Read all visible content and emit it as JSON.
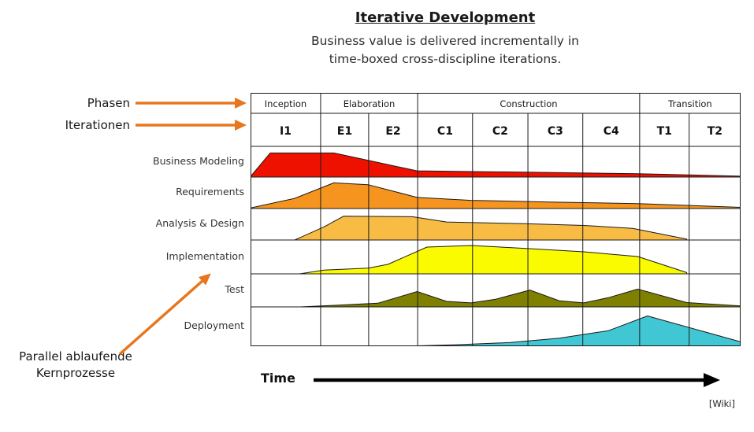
{
  "header": {
    "title": "Iterative Development",
    "subtitle_line1": "Business value is delivered incrementally in",
    "subtitle_line2": "time-boxed cross-discipline iterations."
  },
  "annotations": {
    "phases_label": "Phasen",
    "iterations_label": "Iterationen",
    "parallel_label_line1": "Parallel ablaufende",
    "parallel_label_line2": "Kernprozesse",
    "arrow_color": "#e8761e"
  },
  "footer": {
    "time_label": "Time",
    "time_arrow_color": "#000000",
    "credit": "[Wiki]"
  },
  "chart_data": {
    "type": "area",
    "title": "Iterative Development",
    "xlabel": "Time",
    "grid_color": "#1b1b1b",
    "column_bounds_pct": [
      0,
      14.3,
      24.1,
      34.1,
      45.3,
      56.6,
      67.8,
      79.4,
      89.5,
      100
    ],
    "phases": [
      {
        "label": "Inception",
        "iterations": [
          "I1"
        ]
      },
      {
        "label": "Elaboration",
        "iterations": [
          "E1",
          "E2"
        ]
      },
      {
        "label": "Construction",
        "iterations": [
          "C1",
          "C2",
          "C3",
          "C4"
        ]
      },
      {
        "label": "Transition",
        "iterations": [
          "T1",
          "T2"
        ]
      }
    ],
    "disciplines": [
      {
        "label": "Business Modeling",
        "color": "#ee1100",
        "effort_profile": [
          [
            0,
            0.02
          ],
          [
            4,
            0.85
          ],
          [
            17,
            0.85
          ],
          [
            34,
            0.22
          ],
          [
            57,
            0.17
          ],
          [
            79,
            0.12
          ],
          [
            100,
            0.03
          ]
        ]
      },
      {
        "label": "Requirements",
        "color": "#f5941e",
        "effort_profile": [
          [
            0,
            0.02
          ],
          [
            9,
            0.35
          ],
          [
            17,
            0.88
          ],
          [
            24,
            0.82
          ],
          [
            34,
            0.38
          ],
          [
            45,
            0.28
          ],
          [
            62,
            0.22
          ],
          [
            79,
            0.17
          ],
          [
            100,
            0.04
          ]
        ]
      },
      {
        "label": "Analysis & Design",
        "color": "#f8bc45",
        "effort_profile": [
          [
            9,
            0
          ],
          [
            15,
            0.45
          ],
          [
            19,
            0.82
          ],
          [
            33,
            0.8
          ],
          [
            40,
            0.62
          ],
          [
            56,
            0.56
          ],
          [
            68,
            0.5
          ],
          [
            78,
            0.4
          ],
          [
            89,
            0.03
          ]
        ]
      },
      {
        "label": "Implementation",
        "color": "#fbfb00",
        "effort_profile": [
          [
            10,
            0
          ],
          [
            15,
            0.12
          ],
          [
            24,
            0.18
          ],
          [
            28,
            0.3
          ],
          [
            36,
            0.85
          ],
          [
            45,
            0.9
          ],
          [
            57,
            0.8
          ],
          [
            68,
            0.7
          ],
          [
            79,
            0.55
          ],
          [
            89,
            0.04
          ]
        ]
      },
      {
        "label": "Test",
        "color": "#7f7f00",
        "effort_profile": [
          [
            10,
            0
          ],
          [
            18,
            0.06
          ],
          [
            26,
            0.12
          ],
          [
            34,
            0.5
          ],
          [
            40,
            0.18
          ],
          [
            45,
            0.13
          ],
          [
            50,
            0.25
          ],
          [
            57,
            0.55
          ],
          [
            63,
            0.2
          ],
          [
            68,
            0.13
          ],
          [
            73,
            0.3
          ],
          [
            79,
            0.58
          ],
          [
            89,
            0.14
          ],
          [
            100,
            0.03
          ]
        ]
      },
      {
        "label": "Deployment",
        "color": "#41c7d4",
        "effort_profile": [
          [
            31,
            0
          ],
          [
            42,
            0.04
          ],
          [
            53,
            0.1
          ],
          [
            63,
            0.22
          ],
          [
            73,
            0.42
          ],
          [
            81,
            0.82
          ],
          [
            100,
            0.12
          ]
        ]
      }
    ]
  }
}
